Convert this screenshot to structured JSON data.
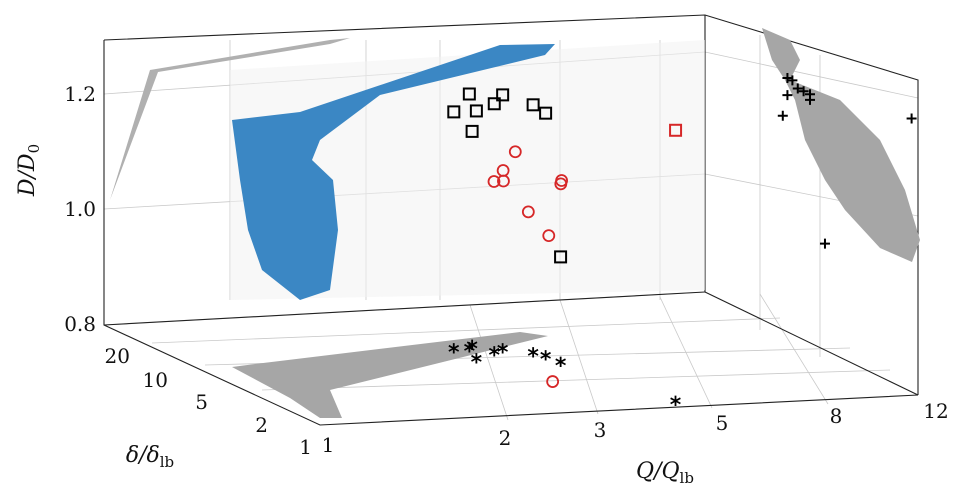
{
  "chart_data": {
    "type": "scatter",
    "projection": "3d",
    "axes": {
      "x": {
        "label": "Q/Q",
        "label_sub": "lb",
        "scale": "log",
        "range": [
          1,
          12
        ],
        "ticks": [
          "1",
          "2",
          "3",
          "5",
          "8",
          "12"
        ]
      },
      "y": {
        "label": "δ/δ",
        "label_sub": "lb",
        "scale": "log",
        "range": [
          1,
          25
        ],
        "ticks": [
          "1",
          "2",
          "5",
          "10",
          "20"
        ]
      },
      "z": {
        "label": "D/D",
        "label_sub": "0",
        "scale": "linear",
        "range": [
          0.8,
          1.3
        ],
        "ticks": [
          "0.8",
          "1.0",
          "1.2"
        ]
      }
    },
    "grid": true,
    "colors": {
      "surface": "#3b87c4",
      "projection": "#a6a6a6",
      "squares": "#000000",
      "circles": "#d62728",
      "projection_markers": "#000000"
    },
    "series": [
      {
        "marker": "square",
        "points": [
          {
            "q": 3.0,
            "d": 5.0,
            "D": 1.24
          },
          {
            "q": 3.4,
            "d": 6.0,
            "D": 1.24
          },
          {
            "q": 3.6,
            "d": 6.5,
            "D": 1.25
          },
          {
            "q": 3.2,
            "d": 7.0,
            "D": 1.25
          },
          {
            "q": 4.0,
            "d": 5.0,
            "D": 1.23
          },
          {
            "q": 3.9,
            "d": 5.5,
            "D": 1.24
          },
          {
            "q": 3.0,
            "d": 7.0,
            "D": 1.22
          },
          {
            "q": 3.3,
            "d": 7.5,
            "D": 1.18
          },
          {
            "q": 4.0,
            "d": 4.0,
            "D": 0.99
          },
          {
            "q": 4.5,
            "d": 1.1,
            "D": 1.28
          }
        ]
      },
      {
        "marker": "circle",
        "points": [
          {
            "q": 2.5,
            "d": 2.0,
            "D": 1.17
          },
          {
            "q": 2.6,
            "d": 2.0,
            "D": 1.17
          },
          {
            "q": 2.7,
            "d": 2.3,
            "D": 1.18
          },
          {
            "q": 3.0,
            "d": 2.8,
            "D": 1.2
          },
          {
            "q": 2.8,
            "d": 1.8,
            "D": 1.12
          },
          {
            "q": 3.3,
            "d": 2.0,
            "D": 1.16
          },
          {
            "q": 3.4,
            "d": 2.2,
            "D": 1.16
          },
          {
            "q": 3.0,
            "d": 1.7,
            "D": 1.08
          },
          {
            "q": 2.7,
            "d": 1.1,
            "D": 0.85
          }
        ]
      }
    ]
  }
}
